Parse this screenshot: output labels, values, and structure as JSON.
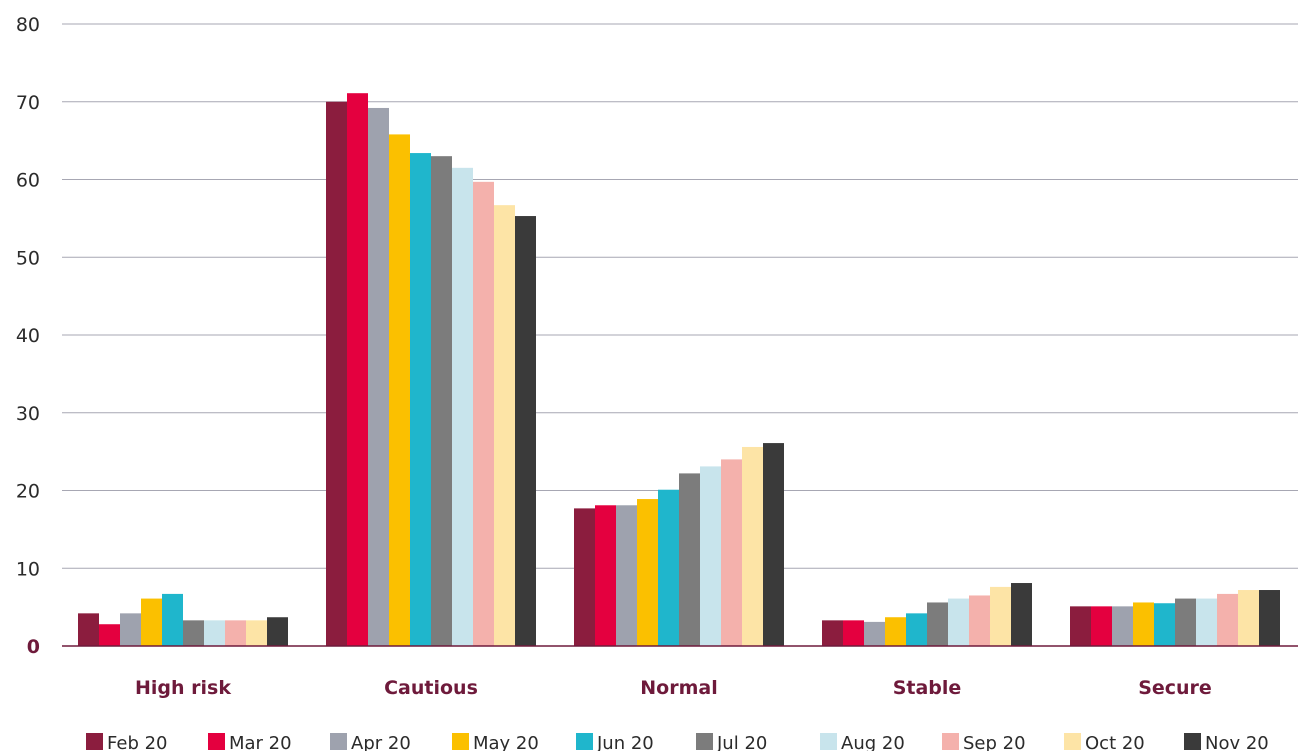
{
  "chart_data": {
    "type": "bar",
    "categories": [
      "High risk",
      "Cautious",
      "Normal",
      "Stable",
      "Secure"
    ],
    "ylim": [
      0,
      80
    ],
    "yticks": [
      "0",
      "10",
      "20",
      "30",
      "40",
      "50",
      "60",
      "70",
      "80"
    ],
    "grid": true,
    "legend_position": "bottom",
    "series": [
      {
        "name": "Feb 20",
        "color": "#8b1d3e",
        "values": [
          4.2,
          70.0,
          17.7,
          3.3,
          5.1
        ]
      },
      {
        "name": "Mar 20",
        "color": "#e4003f",
        "values": [
          2.8,
          71.1,
          18.1,
          3.3,
          5.1
        ]
      },
      {
        "name": "Apr 20",
        "color": "#9ea2ae",
        "values": [
          4.2,
          69.2,
          18.1,
          3.1,
          5.1
        ]
      },
      {
        "name": "May 20",
        "color": "#fbc000",
        "values": [
          6.1,
          65.8,
          18.9,
          3.7,
          5.6
        ]
      },
      {
        "name": "Jun 20",
        "color": "#1fb6cc",
        "values": [
          6.7,
          63.4,
          20.1,
          4.2,
          5.5
        ]
      },
      {
        "name": "Jul 20",
        "color": "#7c7c7c",
        "values": [
          3.3,
          63.0,
          22.2,
          5.6,
          6.1
        ]
      },
      {
        "name": "Aug 20",
        "color": "#c8e4ec",
        "values": [
          3.3,
          61.5,
          23.1,
          6.1,
          6.1
        ]
      },
      {
        "name": "Sep 20",
        "color": "#f4b1ac",
        "values": [
          3.3,
          59.7,
          24.0,
          6.5,
          6.7
        ]
      },
      {
        "name": "Oct 20",
        "color": "#fde4a6",
        "values": [
          3.3,
          56.7,
          25.6,
          7.6,
          7.2
        ]
      },
      {
        "name": "Nov 20",
        "color": "#3a3a3a",
        "values": [
          3.7,
          55.3,
          26.1,
          8.1,
          7.2
        ]
      }
    ]
  }
}
